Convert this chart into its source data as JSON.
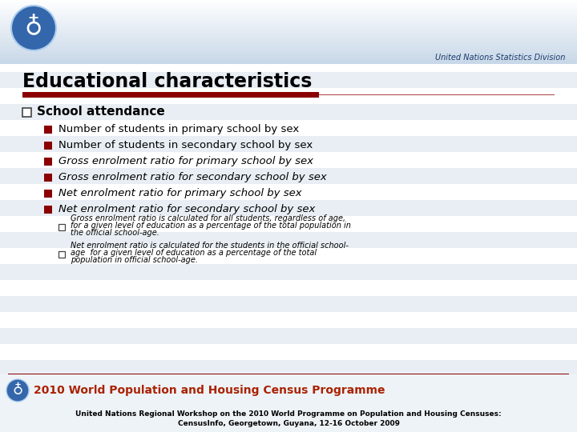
{
  "title": "Educational characteristics",
  "bg_color": "#FFFFFF",
  "un_text": "United Nations Statistics Division",
  "main_bullet": "School attendance",
  "sub_bullets": [
    "Number of students in primary school by sex",
    "Number of students in secondary school by sex",
    "Gross enrolment ratio for primary school by sex",
    "Gross enrolment ratio for secondary school by sex",
    "Net enrolment ratio for primary school by sex",
    "Net enrolment ratio for secondary school by sex"
  ],
  "sub_bullet_italic": [
    false,
    false,
    true,
    true,
    true,
    true
  ],
  "note1_line1": "Gross enrolment ratio is calculated for all students, regardless of age,",
  "note1_line2": "for a given level of education as a percentage of the total population in",
  "note1_line3": "the official school-age.",
  "note2_line1": "Net enrolment ratio is calculated for the students in the official school-",
  "note2_line2": "age  for a given level of education as a percentage of the total",
  "note2_line3": "population in official school-age.",
  "footer_text": "2010 World Population and Housing Census Programme",
  "bottom_text_line1": "United Nations Regional Workshop on the 2010 World Programme on Population and Housing Censuses:",
  "bottom_text_line2": "CensusInfo, Georgetown, Guyana, 12-16 October 2009",
  "red_color": "#8B0000",
  "bullet_color": "#8B0000",
  "stripe_color": "#E8EEF4",
  "title_color": "#000000"
}
